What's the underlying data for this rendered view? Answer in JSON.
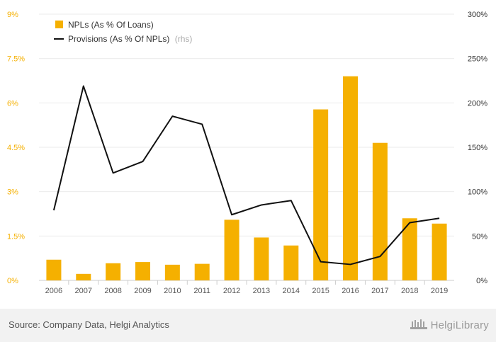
{
  "chart_data": {
    "type": "bar",
    "categories": [
      "2006",
      "2007",
      "2008",
      "2009",
      "2010",
      "2011",
      "2012",
      "2013",
      "2014",
      "2015",
      "2016",
      "2017",
      "2018",
      "2019"
    ],
    "series": [
      {
        "name": "NPLs (As % Of Loans)",
        "type": "bar",
        "axis": "left",
        "color": "#f5b000",
        "values": [
          0.7,
          0.22,
          0.58,
          0.62,
          0.53,
          0.56,
          2.05,
          1.45,
          1.18,
          5.78,
          6.9,
          4.65,
          2.1,
          1.92
        ]
      },
      {
        "name": "Provisions (As % Of NPLs)",
        "name_note": "(rhs)",
        "type": "line",
        "axis": "right",
        "color": "#111111",
        "values": [
          79,
          219,
          121,
          134,
          185,
          176,
          74,
          85,
          90,
          21,
          18,
          27,
          65,
          70
        ]
      }
    ],
    "y_left": {
      "ticks": [
        "0%",
        "1.5%",
        "3%",
        "4.5%",
        "6%",
        "7.5%",
        "9%"
      ],
      "min": 0,
      "max": 9
    },
    "y_right": {
      "ticks": [
        "0%",
        "50%",
        "100%",
        "150%",
        "200%",
        "250%",
        "300%"
      ],
      "min": 0,
      "max": 300
    },
    "legend_position": "top-left",
    "grid": true
  },
  "footer": {
    "source": "Source: Company Data, Helgi Analytics",
    "logo_text": "HelgiLibrary"
  }
}
